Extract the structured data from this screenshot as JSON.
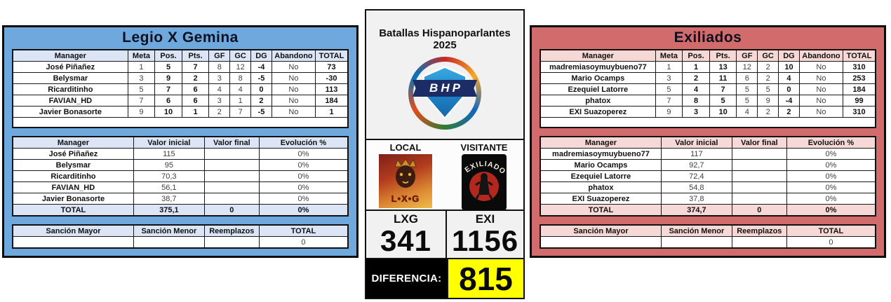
{
  "colors": {
    "left_panel": "#6fa8dc",
    "left_header": "#dbe5f6",
    "right_panel": "#d26b6b",
    "right_header": "#f6d9d6",
    "difference_value_bg": "#ffff00",
    "difference_label_bg": "#000000"
  },
  "teams": {
    "left": {
      "name": "Legio X Gemina",
      "stats_table": {
        "headers": [
          "Manager",
          "Meta",
          "Pos.",
          "Pts.",
          "GF",
          "GC",
          "DG",
          "Abandono",
          "TOTAL"
        ],
        "rows": [
          [
            "José Piñañez",
            "1",
            "5",
            "7",
            "8",
            "12",
            "-4",
            "No",
            "73"
          ],
          [
            "Belysmar",
            "3",
            "9",
            "2",
            "3",
            "8",
            "-5",
            "No",
            "-30"
          ],
          [
            "Ricarditinho",
            "5",
            "7",
            "6",
            "4",
            "4",
            "0",
            "No",
            "113"
          ],
          [
            "FAVIAN_HD",
            "7",
            "6",
            "6",
            "3",
            "1",
            "2",
            "No",
            "184"
          ],
          [
            "Javier Bonasorte",
            "9",
            "10",
            "1",
            "2",
            "7",
            "-5",
            "No",
            "1"
          ]
        ]
      },
      "value_table": {
        "headers": [
          "Manager",
          "Valor inicial",
          "Valor final",
          "Evolución %"
        ],
        "rows": [
          [
            "José Piñañez",
            "115",
            "",
            "0%"
          ],
          [
            "Belysmar",
            "95",
            "",
            "0%"
          ],
          [
            "Ricarditinho",
            "70,3",
            "",
            "0%"
          ],
          [
            "FAVIAN_HD",
            "56,1",
            "",
            "0%"
          ],
          [
            "Javier Bonasorte",
            "38,7",
            "",
            "0%"
          ]
        ],
        "total_rows": [
          [
            "TOTAL",
            "375,1",
            "0",
            "0%"
          ]
        ]
      },
      "sanction_table": {
        "headers": [
          "Sanción Mayor",
          "Sanción Menor",
          "Reemplazos",
          "TOTAL"
        ],
        "rows": [
          [
            "",
            "",
            "",
            "0"
          ]
        ]
      }
    },
    "right": {
      "name": "Exiliados",
      "stats_table": {
        "headers": [
          "Manager",
          "Meta",
          "Pos.",
          "Pts.",
          "GF",
          "GC",
          "DG",
          "Abandono",
          "TOTAL"
        ],
        "rows": [
          [
            "madremiasoymuybueno77",
            "1",
            "1",
            "13",
            "12",
            "2",
            "10",
            "No",
            "310"
          ],
          [
            "Mario Ocamps",
            "3",
            "2",
            "11",
            "6",
            "2",
            "4",
            "No",
            "253"
          ],
          [
            "Ezequiel Latorre",
            "5",
            "4",
            "7",
            "5",
            "5",
            "0",
            "No",
            "184"
          ],
          [
            "phatox",
            "7",
            "8",
            "5",
            "5",
            "9",
            "-4",
            "No",
            "99"
          ],
          [
            "EXI Suazoperez",
            "9",
            "3",
            "10",
            "4",
            "2",
            "2",
            "No",
            "310"
          ]
        ]
      },
      "value_table": {
        "headers": [
          "Manager",
          "Valor inicial",
          "Valor final",
          "Evolución %"
        ],
        "rows": [
          [
            "madremiasoymuybueno77",
            "117",
            "",
            "0%"
          ],
          [
            "Mario Ocamps",
            "92,7",
            "",
            "0%"
          ],
          [
            "Ezequiel Latorre",
            "72,4",
            "",
            "0%"
          ],
          [
            "phatox",
            "54,8",
            "",
            "0%"
          ],
          [
            "EXI Suazoperez",
            "37,8",
            "",
            "0%"
          ]
        ],
        "total_rows": [
          [
            "TOTAL",
            "374,7",
            "0",
            "0%"
          ]
        ]
      },
      "sanction_table": {
        "headers": [
          "Sanción Mayor",
          "Sanción Menor",
          "Reemplazos",
          "TOTAL"
        ],
        "rows": [
          [
            "",
            "",
            "",
            "0"
          ]
        ]
      }
    }
  },
  "center": {
    "title": "Batallas Hispanoparlantes 2025",
    "logo_text": "BHP",
    "local_label": "LOCAL",
    "visitor_label": "VISITANTE",
    "local_logo_text": "L•X•G",
    "visitor_logo_text": "EXILIADOS",
    "local_code": "LXG",
    "visitor_code": "EXI",
    "local_score": "341",
    "visitor_score": "1156",
    "difference_label": "DIFERENCIA:",
    "difference_value": "815"
  }
}
